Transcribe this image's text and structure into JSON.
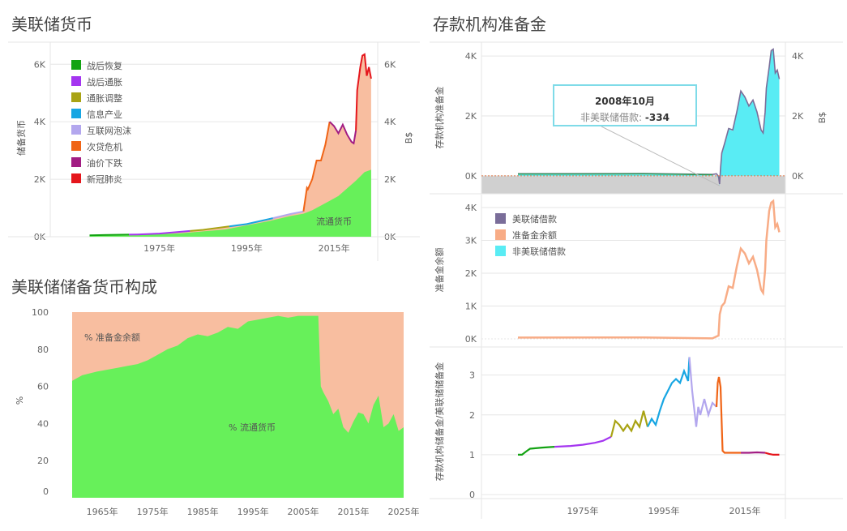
{
  "titles": {
    "p1": "美联储货币",
    "p2": "存款机构准备金",
    "p3": "美联储储备货币构成"
  },
  "tooltip": {
    "date": "2008年10月",
    "label": "非美联储借款:",
    "value": "-334"
  },
  "colors": {
    "currency_green": "#67f05a",
    "reserve_salmon": "#f8bea0",
    "nonborrowed_cyan": "#59ecf4",
    "borrowed_purple": "#7a6d99",
    "grid": "#e6e6e6",
    "tooltip_border": "#7fdbe8"
  },
  "chart_data": [
    {
      "id": "monetary_base",
      "type": "area",
      "title": "美联储货币",
      "ylabel": "储备货币",
      "ylabel_right": "B$",
      "yticks": [
        "0K",
        "2K",
        "4K",
        "6K"
      ],
      "ylim": [
        0,
        6600
      ],
      "xticks": [
        "1975年",
        "1995年",
        "2015年"
      ],
      "xlim": [
        1950,
        2025
      ],
      "legend": [
        "战后恢复",
        "战后通胀",
        "通胀调整",
        "信息产业",
        "互联网泡沫",
        "次贷危机",
        "油价下跌",
        "新冠肺炎"
      ],
      "legend_colors": [
        "#13a313",
        "#a435f0",
        "#a9a314",
        "#17a6e3",
        "#b3a7ee",
        "#f06416",
        "#a21d83",
        "#e5161c"
      ],
      "area_label": "流通货币",
      "series": [
        {
          "name": "流通货币",
          "x": [
            1959,
            1970,
            1980,
            1990,
            2000,
            2005,
            2008,
            2010,
            2014,
            2016,
            2020,
            2022,
            2023.5
          ],
          "y": [
            30,
            55,
            120,
            250,
            540,
            720,
            800,
            920,
            1250,
            1420,
            1950,
            2250,
            2330
          ]
        },
        {
          "name": "储备货币",
          "x": [
            1959,
            1970,
            1975,
            1985,
            1995,
            2000,
            2005,
            2008,
            2008.8,
            2009,
            2010,
            2011,
            2012,
            2013,
            2014,
            2015,
            2016,
            2017,
            2018,
            2019,
            2019.5,
            2020,
            2020.3,
            2021,
            2021.5,
            2022,
            2022.5,
            2023,
            2023.5
          ],
          "y": [
            50,
            80,
            110,
            240,
            440,
            610,
            790,
            880,
            1700,
            1650,
            2000,
            2650,
            2650,
            3200,
            4000,
            3850,
            3600,
            3900,
            3550,
            3300,
            3250,
            3700,
            5100,
            5900,
            6300,
            6350,
            5600,
            5900,
            5500
          ]
        }
      ]
    },
    {
      "id": "reserves_top",
      "type": "area",
      "title": "存款机构准备金",
      "ylabel": "存款机构准备金",
      "ylabel_right": "B$",
      "yticks": [
        "0K",
        "2K",
        "4K"
      ],
      "ylim": [
        -600,
        4300
      ],
      "xlim": [
        1950,
        2025
      ],
      "series": [
        {
          "name": "非美联储借款",
          "x": [
            1959,
            1990,
            2007,
            2008.0,
            2008.5,
            2008.75,
            2009,
            2009.3,
            2010,
            2011,
            2012,
            2013,
            2014,
            2015,
            2016,
            2017,
            2018,
            2019,
            2019.5,
            2020,
            2020.3,
            2021,
            2021.5,
            2022,
            2022.5,
            2023,
            2023.5
          ],
          "y": [
            40,
            45,
            15,
            5,
            -80,
            -334,
            200,
            700,
            1050,
            1550,
            1500,
            2100,
            2800,
            2600,
            2300,
            2500,
            2100,
            1500,
            1400,
            2100,
            2900,
            3600,
            4150,
            4200,
            3400,
            3500,
            3200
          ]
        },
        {
          "name": "美联储借款",
          "x": [
            1959,
            2007,
            2008.0,
            2008.75,
            2009.3,
            2010,
            2023.5
          ],
          "y": [
            0,
            0,
            50,
            400,
            150,
            10,
            0
          ]
        }
      ]
    },
    {
      "id": "reserves_mid",
      "type": "line",
      "ylabel": "准备金余额",
      "yticks": [
        "0K",
        "1K",
        "2K",
        "3K",
        "4K"
      ],
      "ylim": [
        0,
        4300
      ],
      "xlim": [
        1950,
        2025
      ],
      "legend": [
        "美联储借款",
        "准备金余额",
        "非美联储借款"
      ],
      "legend_colors": [
        "#7a6d99",
        "#f8ac86",
        "#59ecf4"
      ],
      "series": [
        {
          "name": "准备金余额",
          "x": [
            1959,
            1990,
            2007,
            2008.5,
            2008.8,
            2009,
            2009.3,
            2010,
            2011,
            2012,
            2013,
            2014,
            2015,
            2016,
            2017,
            2018,
            2019,
            2019.5,
            2020,
            2020.3,
            2021,
            2021.5,
            2022,
            2022.5,
            2023,
            2023.5
          ],
          "y": [
            40,
            45,
            15,
            100,
            750,
            850,
            1000,
            1100,
            1600,
            1550,
            2200,
            2750,
            2600,
            2300,
            2500,
            2100,
            1500,
            1400,
            2100,
            3000,
            3900,
            4150,
            4200,
            3400,
            3500,
            3250
          ]
        }
      ]
    },
    {
      "id": "ratio",
      "type": "line",
      "ylabel": "存款机构储备金/美联储储备金",
      "yticks": [
        "0",
        "1",
        "2",
        "3"
      ],
      "ylim": [
        -0.1,
        3.5
      ],
      "xticks": [
        "1975年",
        "1995年",
        "2015年"
      ],
      "xlim": [
        1950,
        2025
      ],
      "series": [
        {
          "name": "战后恢复",
          "color": "#13a313",
          "x": [
            1959,
            1960,
            1961,
            1962,
            1965,
            1968
          ],
          "y": [
            1.0,
            1.0,
            1.08,
            1.15,
            1.18,
            1.2
          ]
        },
        {
          "name": "战后通胀",
          "color": "#a435f0",
          "x": [
            1968,
            1972,
            1975,
            1978,
            1980,
            1982
          ],
          "y": [
            1.2,
            1.22,
            1.25,
            1.3,
            1.35,
            1.45
          ]
        },
        {
          "name": "通胀调整",
          "color": "#a9a314",
          "x": [
            1982,
            1983,
            1984,
            1985,
            1986,
            1987,
            1988,
            1989,
            1990,
            1991
          ],
          "y": [
            1.45,
            1.85,
            1.75,
            1.6,
            1.75,
            1.6,
            1.85,
            1.7,
            2.1,
            1.7
          ]
        },
        {
          "name": "信息产业",
          "color": "#17a6e3",
          "x": [
            1991,
            1992,
            1993,
            1994,
            1995,
            1996,
            1997,
            1998,
            1999,
            2000,
            2001,
            2001.3
          ],
          "y": [
            1.7,
            1.9,
            1.75,
            2.1,
            2.4,
            2.6,
            2.8,
            2.9,
            2.8,
            3.1,
            2.85,
            3.45
          ]
        },
        {
          "name": "互联网泡沫",
          "color": "#b3a7ee",
          "x": [
            2001.3,
            2002,
            2003,
            2003.5,
            2004,
            2005,
            2006,
            2007,
            2008
          ],
          "y": [
            3.45,
            2.6,
            1.7,
            2.2,
            2.0,
            2.4,
            2.0,
            2.3,
            2.2
          ]
        },
        {
          "name": "次贷危机",
          "color": "#f06416",
          "x": [
            2008,
            2008.3,
            2008.6,
            2009,
            2009.5,
            2010,
            2012,
            2014
          ],
          "y": [
            2.2,
            2.8,
            2.95,
            2.7,
            1.1,
            1.05,
            1.05,
            1.05
          ]
        },
        {
          "name": "油价下跌",
          "color": "#a21d83",
          "x": [
            2014,
            2016,
            2018,
            2020
          ],
          "y": [
            1.05,
            1.05,
            1.06,
            1.05
          ]
        },
        {
          "name": "新冠肺炎",
          "color": "#e5161c",
          "x": [
            2020,
            2021,
            2022,
            2023.5
          ],
          "y": [
            1.05,
            1.02,
            1.0,
            1.0
          ]
        }
      ]
    },
    {
      "id": "composition",
      "type": "area",
      "title": "美联储储备货币构成",
      "ylabel": "%",
      "yticks": [
        "0",
        "20",
        "40",
        "60",
        "80",
        "100"
      ],
      "ylim": [
        0,
        100
      ],
      "xticks": [
        "1965年",
        "1975年",
        "1985年",
        "1995年",
        "2005年",
        "2015年",
        "2025年"
      ],
      "xlim": [
        1959,
        2025
      ],
      "labels": [
        "% 准备金余额",
        "% 流通货币"
      ],
      "series": [
        {
          "name": "% 流通货币",
          "x": [
            1959,
            1961,
            1964,
            1966,
            1968,
            1970,
            1972,
            1974,
            1976,
            1978,
            1980,
            1982,
            1984,
            1986,
            1988,
            1990,
            1992,
            1994,
            1996,
            1998,
            2000,
            2002,
            2004,
            2006,
            2008.0,
            2008.5,
            2009,
            2010,
            2011,
            2012,
            2013,
            2014,
            2015,
            2016,
            2017,
            2018,
            2019,
            2020,
            2021,
            2022,
            2023,
            2024,
            2025
          ],
          "y": [
            63,
            66,
            68,
            69,
            70,
            71,
            72,
            74,
            77,
            80,
            82,
            86,
            88,
            87,
            89,
            92,
            91,
            95,
            96,
            97,
            98,
            97,
            98,
            98,
            98,
            60,
            57,
            52,
            45,
            48,
            38,
            35,
            41,
            46,
            45,
            40,
            50,
            55,
            38,
            40,
            45,
            36,
            38
          ]
        }
      ]
    }
  ]
}
